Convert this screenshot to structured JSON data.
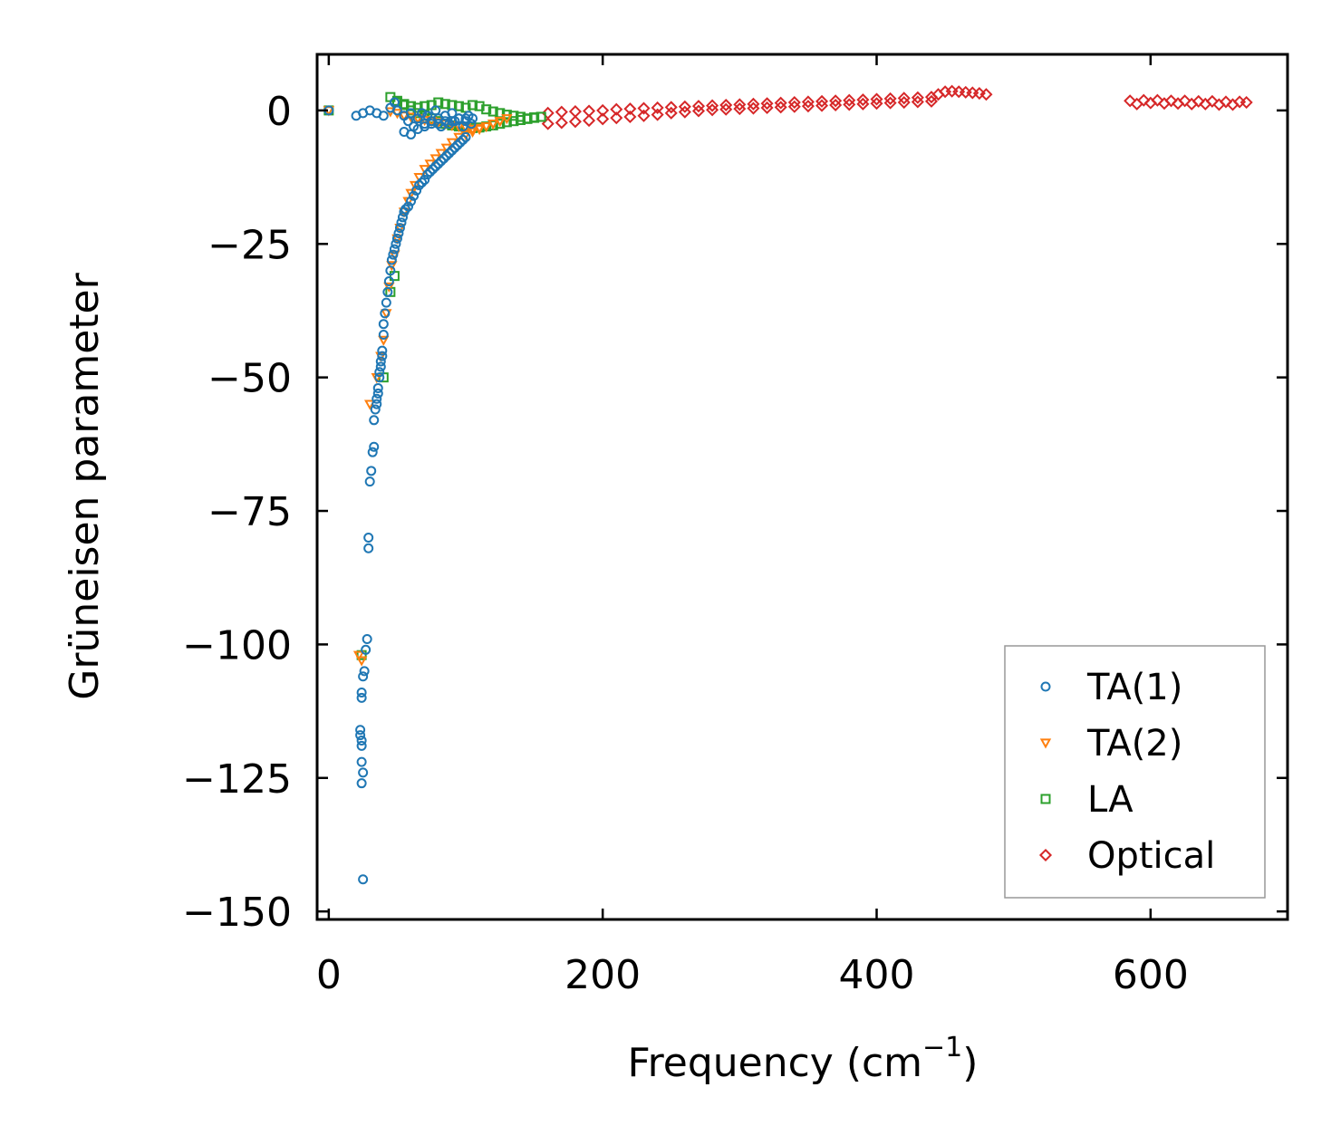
{
  "chart_data": {
    "type": "scatter",
    "title": "",
    "xlabel": "Frequency (cm",
    "xlabel_sup": "−1",
    "xlabel_close": ")",
    "ylabel": "Grüneisen parameter",
    "xlim": [
      -8.5,
      700
    ],
    "ylim": [
      -151.5,
      10.5
    ],
    "xticks": [
      0,
      200,
      400,
      600
    ],
    "xtick_labels": [
      "0",
      "200",
      "400",
      "600"
    ],
    "yticks": [
      0,
      -25,
      -50,
      -75,
      -100,
      -125,
      -150
    ],
    "ytick_labels": [
      "0",
      "−25",
      "−50",
      "−75",
      "−100",
      "−125",
      "−150"
    ],
    "grid": false,
    "legend_position": "bottom-right",
    "series": [
      {
        "name": "TA(1)",
        "marker": "circle",
        "color": "#1f77b4",
        "x": [
          0,
          20,
          25,
          30,
          35,
          40,
          45,
          48,
          50,
          55,
          58,
          60,
          62,
          65,
          68,
          70,
          72,
          75,
          78,
          80,
          82,
          85,
          88,
          90,
          92,
          95,
          98,
          100,
          102,
          104,
          55,
          60,
          65,
          70,
          75,
          80,
          85,
          90,
          95,
          100,
          105,
          25,
          24,
          25,
          24,
          24,
          24,
          23,
          23,
          24,
          24,
          25,
          26,
          27,
          28,
          29,
          29,
          30,
          31,
          32,
          33,
          33,
          34,
          35,
          35,
          36,
          36,
          37,
          37,
          38,
          38,
          39,
          39,
          40,
          40,
          41,
          42,
          43,
          44,
          45,
          46,
          47,
          48,
          49,
          50,
          51,
          52,
          53,
          54,
          55,
          56,
          58,
          60,
          62,
          64,
          66,
          68,
          70,
          72,
          74,
          76,
          78,
          80,
          82,
          84,
          86,
          88,
          90,
          92,
          94,
          96,
          98,
          100
        ],
        "y": [
          0,
          -1,
          -0.5,
          0,
          -0.5,
          -1,
          0.5,
          1.5,
          0,
          -1,
          -2,
          -0.5,
          -3,
          -1.5,
          -0.5,
          -2.5,
          -1,
          -2,
          0,
          -1.5,
          -3,
          -1,
          -2.5,
          -0.5,
          -2,
          -1.5,
          -3,
          -2,
          -1,
          -2.5,
          -4,
          -4.5,
          -3.5,
          -3,
          -2.5,
          -2.5,
          -2,
          -2,
          -1.5,
          -1.5,
          -1.5,
          -144,
          -126,
          -124,
          -122,
          -119,
          -118,
          -117,
          -116,
          -110,
          -109,
          -106,
          -105,
          -101,
          -99,
          -82,
          -80,
          -69.5,
          -67.5,
          -64,
          -63,
          -58,
          -56,
          -55,
          -54,
          -53,
          -52,
          -50,
          -49,
          -48,
          -47,
          -46,
          -45,
          -42,
          -40,
          -38,
          -36,
          -34,
          -32,
          -30,
          -28,
          -27,
          -26,
          -25,
          -24,
          -23,
          -22,
          -21,
          -20,
          -19,
          -18.5,
          -18,
          -17,
          -16,
          -15,
          -14,
          -13.5,
          -13,
          -12,
          -11.5,
          -11,
          -10.5,
          -10,
          -9.5,
          -9,
          -8.5,
          -8,
          -7.5,
          -7,
          -6.5,
          -6,
          -5.5,
          -5
        ]
      },
      {
        "name": "TA(2)",
        "marker": "triangle-down",
        "color": "#ff7f0e",
        "x": [
          0,
          22,
          24,
          30,
          35,
          38,
          40,
          42,
          44,
          46,
          48,
          50,
          52,
          55,
          58,
          60,
          63,
          66,
          70,
          74,
          78,
          82,
          86,
          90,
          95,
          100,
          105,
          110,
          115,
          120,
          125,
          130,
          45,
          50,
          55,
          60,
          65,
          70,
          75,
          80,
          85,
          90,
          95,
          100,
          105,
          110,
          115,
          120,
          125
        ],
        "y": [
          0,
          -102,
          -103,
          -55,
          -50,
          -46,
          -43,
          -38,
          -33,
          -29,
          -27,
          -24,
          -22,
          -19,
          -17,
          -15.5,
          -14,
          -12.5,
          -11,
          -10,
          -9,
          -8,
          -7,
          -6,
          -5,
          -4.5,
          -4,
          -3.5,
          -3,
          -2.5,
          -2,
          -1.5,
          -0.2,
          -0.5,
          -1,
          -1.2,
          -1.5,
          -1.8,
          -2,
          -2.2,
          -2.5,
          -2.8,
          -3,
          -3.2,
          -3.5,
          -3.3,
          -3,
          -2.5,
          -2
        ]
      },
      {
        "name": "LA",
        "marker": "square",
        "color": "#2ca02c",
        "x": [
          0,
          24,
          40,
          45,
          48,
          50,
          55,
          60,
          65,
          70,
          75,
          80,
          85,
          90,
          95,
          100,
          105,
          110,
          115,
          120,
          125,
          130,
          135,
          140,
          145,
          150,
          155,
          45,
          50,
          55,
          60,
          65,
          70,
          75,
          80,
          85,
          90,
          95,
          100,
          105,
          110,
          115,
          120,
          125,
          130,
          135,
          140,
          145,
          150,
          155
        ],
        "y": [
          0,
          -102,
          -50,
          -34,
          -31,
          1.5,
          1.2,
          0.8,
          0.5,
          0.8,
          1,
          1.5,
          1.2,
          1,
          0.8,
          0.5,
          1,
          0.8,
          0.2,
          -0.2,
          -0.5,
          -0.8,
          -1,
          -1.2,
          -1.5,
          -1.3,
          -1.2,
          2.5,
          1.8,
          1,
          0,
          -0.5,
          -1,
          -1.5,
          -2,
          -2.5,
          -2.8,
          -3,
          -3.2,
          -3.3,
          -3.2,
          -3,
          -2.8,
          -2.5,
          -2.2,
          -2,
          -1.8,
          -1.6,
          -1.4,
          -1.2
        ]
      },
      {
        "name": "Optical",
        "marker": "diamond",
        "color": "#d62728",
        "x": [
          160,
          170,
          180,
          190,
          200,
          210,
          220,
          230,
          240,
          250,
          260,
          270,
          280,
          290,
          300,
          310,
          320,
          330,
          340,
          350,
          360,
          370,
          380,
          390,
          400,
          410,
          420,
          430,
          440,
          445,
          450,
          455,
          460,
          465,
          470,
          475,
          480,
          160,
          170,
          180,
          190,
          200,
          210,
          220,
          230,
          240,
          250,
          260,
          270,
          280,
          290,
          300,
          310,
          320,
          330,
          340,
          350,
          360,
          370,
          380,
          390,
          400,
          410,
          420,
          430,
          440,
          585,
          595,
          605,
          615,
          625,
          635,
          645,
          655,
          665,
          670,
          590,
          600,
          610,
          620,
          630,
          640,
          650,
          660
        ],
        "y": [
          -0.5,
          -0.3,
          -0.2,
          -0.1,
          0,
          0.2,
          0.3,
          0.4,
          0.5,
          0.6,
          0.7,
          0.8,
          0.9,
          1,
          1.1,
          1.2,
          1.3,
          1.4,
          1.5,
          1.6,
          1.7,
          1.8,
          1.9,
          2,
          2.1,
          2.2,
          2.3,
          2.4,
          2.5,
          3,
          3.5,
          3.6,
          3.5,
          3.4,
          3.3,
          3.2,
          3,
          -2.5,
          -2.3,
          -2.1,
          -1.9,
          -1.6,
          -1.4,
          -1.2,
          -1,
          -0.8,
          -0.5,
          -0.3,
          -0.1,
          0.1,
          0.2,
          0.3,
          0.4,
          0.5,
          0.6,
          0.7,
          0.8,
          0.9,
          1,
          1.1,
          1.2,
          1.3,
          1.4,
          1.5,
          1.6,
          1.7,
          1.8,
          1.9,
          1.9,
          1.8,
          1.8,
          1.7,
          1.7,
          1.6,
          1.6,
          1.5,
          1.2,
          1.4,
          1.3,
          1.3,
          1.2,
          1.2,
          1.1,
          1.1
        ]
      }
    ]
  }
}
